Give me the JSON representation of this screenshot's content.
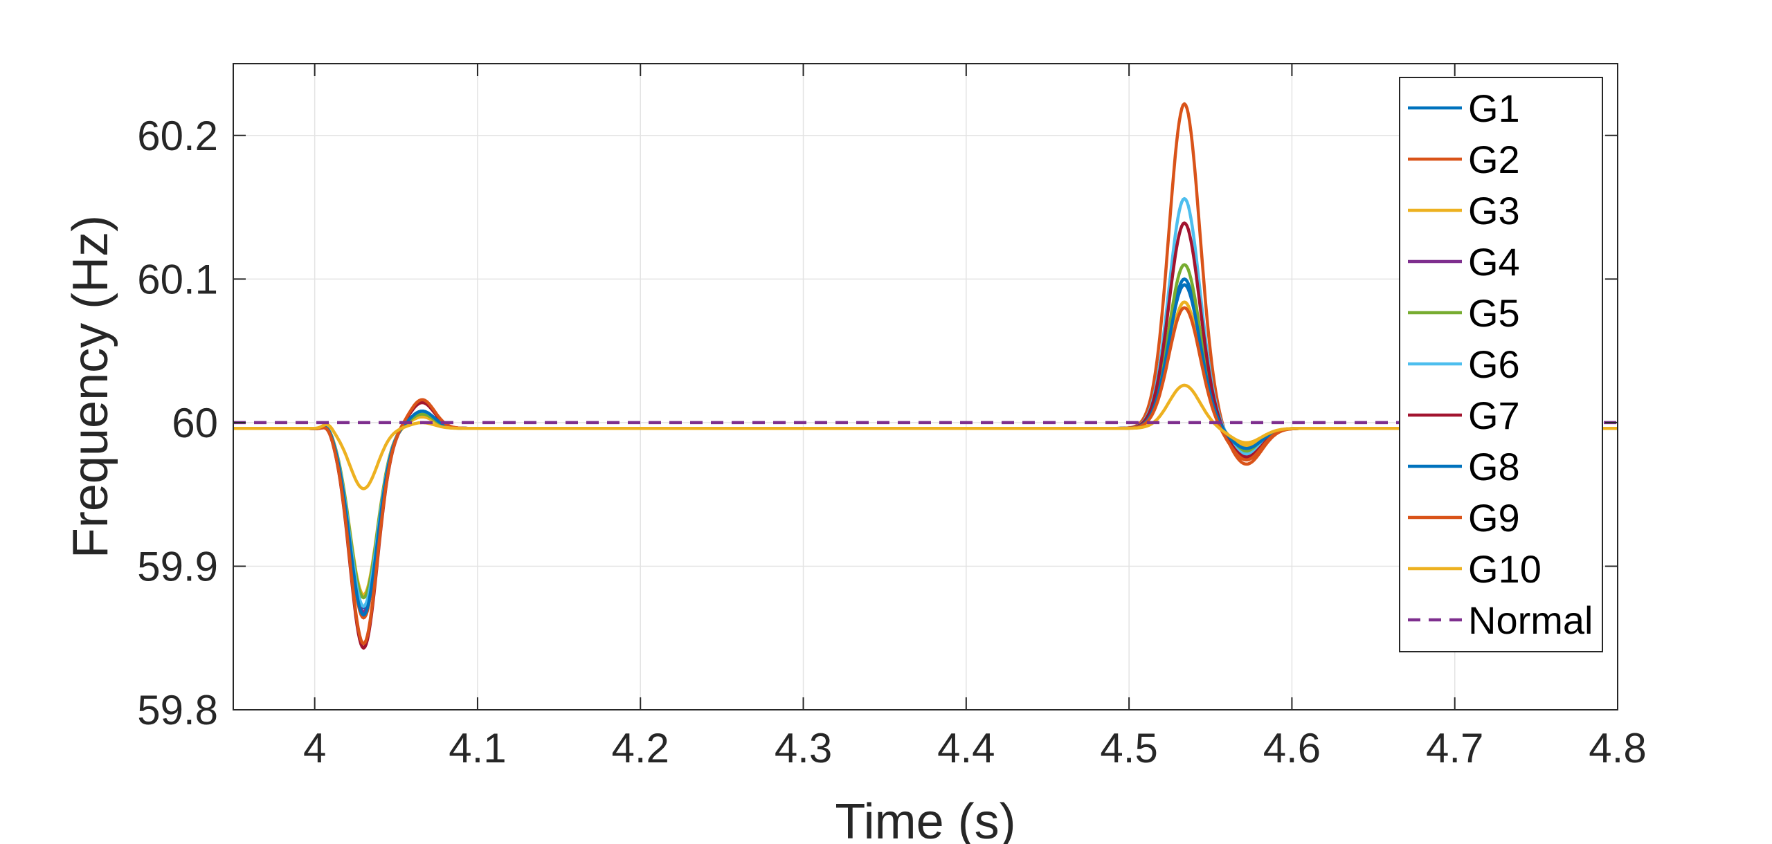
{
  "chart_data": {
    "type": "line",
    "xlabel": "Time (s)",
    "ylabel": "Frequency (Hz)",
    "xlim": [
      3.95,
      4.8
    ],
    "ylim": [
      59.8,
      60.25
    ],
    "xticks": [
      "4",
      "4.1",
      "4.2",
      "4.3",
      "4.4",
      "4.5",
      "4.6",
      "4.7",
      "4.8"
    ],
    "yticks": [
      "59.8",
      "59.9",
      "60",
      "60.1",
      "60.2"
    ],
    "grid": true,
    "legend_position": "top-right",
    "baseline": 59.996,
    "normal_value": 60.0,
    "series": [
      {
        "name": "G1",
        "color": "#0072BD",
        "dip1": -0.125,
        "over1": 0.012,
        "peak2": 0.104,
        "dip2": -0.016
      },
      {
        "name": "G2",
        "color": "#D95319",
        "dip1": -0.132,
        "over1": 0.018,
        "peak2": 0.226,
        "dip2": -0.025
      },
      {
        "name": "G3",
        "color": "#EDB120",
        "dip1": -0.116,
        "over1": 0.008,
        "peak2": 0.088,
        "dip2": -0.012
      },
      {
        "name": "G4",
        "color": "#7E2F8E",
        "dip1": -0.128,
        "over1": 0.012,
        "peak2": 0.1,
        "dip2": -0.015
      },
      {
        "name": "G5",
        "color": "#77AC30",
        "dip1": -0.118,
        "over1": 0.01,
        "peak2": 0.114,
        "dip2": -0.016
      },
      {
        "name": "G6",
        "color": "#4DBEEE",
        "dip1": -0.124,
        "over1": 0.012,
        "peak2": 0.16,
        "dip2": -0.018
      },
      {
        "name": "G7",
        "color": "#A2142F",
        "dip1": -0.153,
        "over1": 0.018,
        "peak2": 0.143,
        "dip2": -0.02
      },
      {
        "name": "G8",
        "color": "#0072BD",
        "dip1": -0.13,
        "over1": 0.012,
        "peak2": 0.1,
        "dip2": -0.014
      },
      {
        "name": "G9",
        "color": "#D95319",
        "dip1": -0.15,
        "over1": 0.02,
        "peak2": 0.084,
        "dip2": -0.022
      },
      {
        "name": "G10",
        "color": "#EDB120",
        "dip1": -0.042,
        "over1": 0.004,
        "peak2": 0.03,
        "dip2": -0.01
      },
      {
        "name": "Normal",
        "color": "#7E2F8E",
        "dashed": true,
        "constant": 60.0
      }
    ]
  }
}
